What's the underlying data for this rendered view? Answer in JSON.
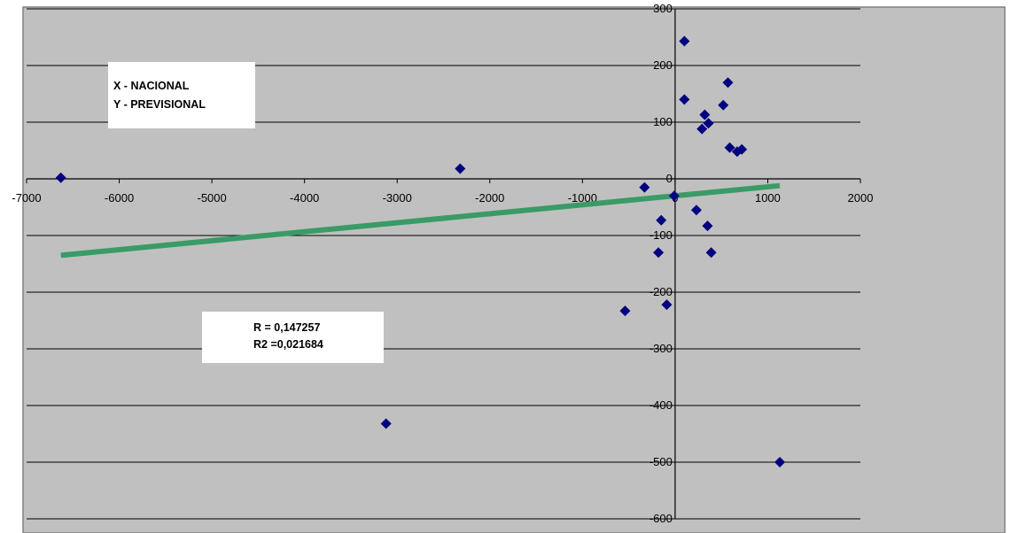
{
  "chart_data": {
    "type": "scatter",
    "title": "",
    "xlabel": "",
    "ylabel": "",
    "xlim": [
      -7000,
      2000
    ],
    "ylim": [
      -600,
      300
    ],
    "x_ticks": [
      "-7000",
      "-6000",
      "-5000",
      "-4000",
      "-3000",
      "-2000",
      "-1000",
      "0",
      "1000",
      "2000"
    ],
    "y_ticks": [
      "300",
      "200",
      "100",
      "0",
      "-100",
      "-200",
      "-300",
      "-400",
      "-500",
      "-600"
    ],
    "grid": "horizontal",
    "series": [
      {
        "points": [
          [
            -6630,
            2
          ],
          [
            -2320,
            18
          ],
          [
            -3120,
            -432
          ],
          [
            -540,
            -233
          ],
          [
            -330,
            -15
          ],
          [
            -180,
            -130
          ],
          [
            -150,
            -73
          ],
          [
            -90,
            -222
          ],
          [
            -10,
            -30
          ],
          [
            100,
            243
          ],
          [
            100,
            140
          ],
          [
            230,
            -55
          ],
          [
            290,
            88
          ],
          [
            320,
            113
          ],
          [
            360,
            98
          ],
          [
            350,
            -83
          ],
          [
            390,
            -130
          ],
          [
            520,
            130
          ],
          [
            570,
            170
          ],
          [
            590,
            55
          ],
          [
            670,
            48
          ],
          [
            720,
            52
          ],
          [
            1130,
            -500
          ]
        ]
      }
    ],
    "trendline": {
      "x": [
        -6630,
        1130
      ],
      "y": [
        -135,
        -12
      ]
    },
    "annotations": [
      {
        "lines": [
          "X - NACIONAL",
          "Y - PREVISIONAL"
        ]
      },
      {
        "lines": [
          "R   = 0,147257",
          "R2 =0,021684"
        ]
      }
    ],
    "colors": {
      "plot_background": "#c0c0c0",
      "gridline": "#000000",
      "marker": "#000080",
      "trendline": "#3a9b66"
    }
  }
}
